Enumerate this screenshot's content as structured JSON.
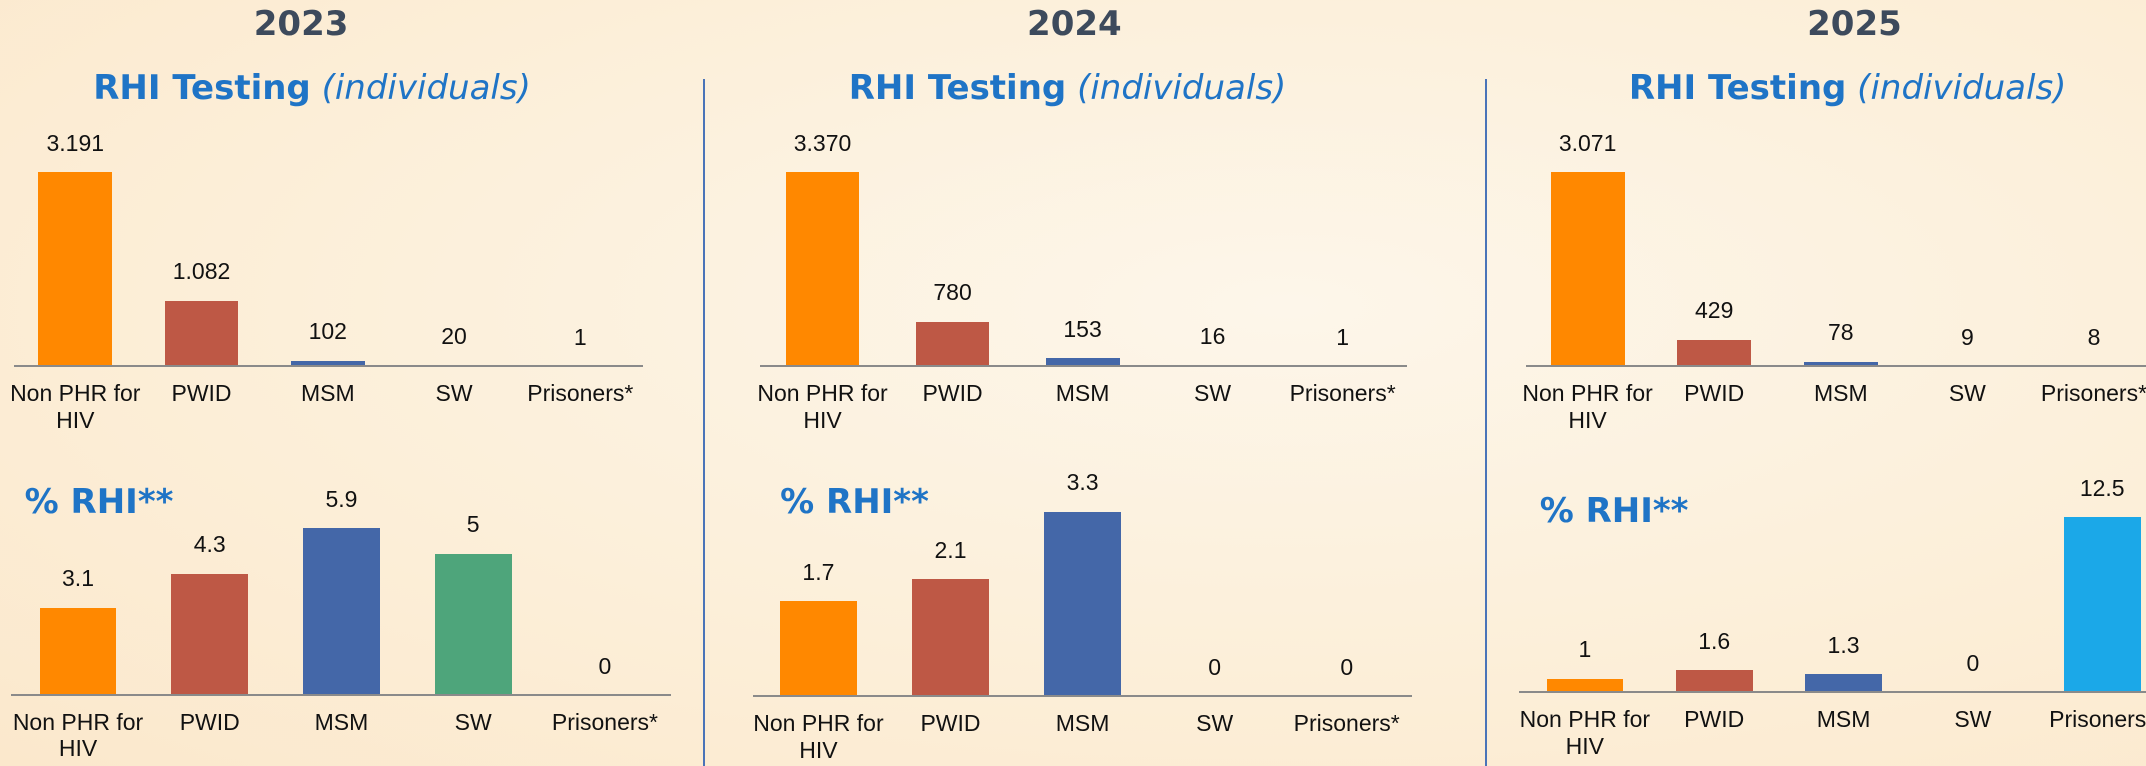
{
  "headings": [
    "2023",
    "2024",
    "2025"
  ],
  "chart_data": [
    {
      "type": "bar",
      "title": "RHI Testing",
      "subtitle": "(individuals)",
      "categories": [
        "Non PHR for HIV",
        "PWID",
        "MSM",
        "SW",
        "Prisoners*"
      ],
      "values": [
        3191,
        1082,
        102,
        20,
        1
      ],
      "value_labels": [
        "3.191",
        "1.082",
        "102",
        "20",
        "1"
      ],
      "colors": [
        "#FF8800",
        "#BE5845",
        "#4467A8",
        "#4467A8",
        "#4467A8"
      ]
    },
    {
      "type": "bar",
      "title": "RHI Testing",
      "subtitle": "(individuals)",
      "categories": [
        "Non PHR for HIV",
        "PWID",
        "MSM",
        "SW",
        "Prisoners*"
      ],
      "values": [
        3370,
        780,
        153,
        16,
        1
      ],
      "value_labels": [
        "3.370",
        "780",
        "153",
        "16",
        "1"
      ],
      "colors": [
        "#FF8800",
        "#BE5845",
        "#4467A8",
        "#4467A8",
        "#4467A8"
      ]
    },
    {
      "type": "bar",
      "title": "RHI Testing",
      "subtitle": "(individuals)",
      "categories": [
        "Non PHR for HIV",
        "PWID",
        "MSM",
        "SW",
        "Prisoners*"
      ],
      "values": [
        3071,
        429,
        78,
        9,
        8
      ],
      "value_labels": [
        "3.071",
        "429",
        "78",
        "9",
        "8"
      ],
      "colors": [
        "#FF8800",
        "#BE5845",
        "#4467A8",
        "#4467A8",
        "#4467A8"
      ]
    },
    {
      "type": "bar",
      "title": "% RHI**",
      "categories": [
        "Non PHR for HIV",
        "PWID",
        "MSM",
        "SW",
        "Prisoners*"
      ],
      "values": [
        3.1,
        4.3,
        5.9,
        5,
        0
      ],
      "colors": [
        "#FF8800",
        "#BE5845",
        "#4467A8",
        "#4EA57B",
        "#1BA8E8"
      ]
    },
    {
      "type": "bar",
      "title": "% RHI**",
      "categories": [
        "Non PHR for HIV",
        "PWID",
        "MSM",
        "SW",
        "Prisoners*"
      ],
      "values": [
        1.7,
        2.1,
        3.3,
        0,
        0
      ],
      "colors": [
        "#FF8800",
        "#BE5845",
        "#4467A8",
        "#4EA57B",
        "#1BA8E8"
      ]
    },
    {
      "type": "bar",
      "title": "% RHI**",
      "categories": [
        "Non PHR for HIV",
        "PWID",
        "MSM",
        "SW",
        "Prisoners*"
      ],
      "values": [
        1,
        1.6,
        1.3,
        0,
        12.5
      ],
      "colors": [
        "#FF8800",
        "#BE5845",
        "#4467A8",
        "#4EA57B",
        "#1BA8E8"
      ]
    }
  ]
}
